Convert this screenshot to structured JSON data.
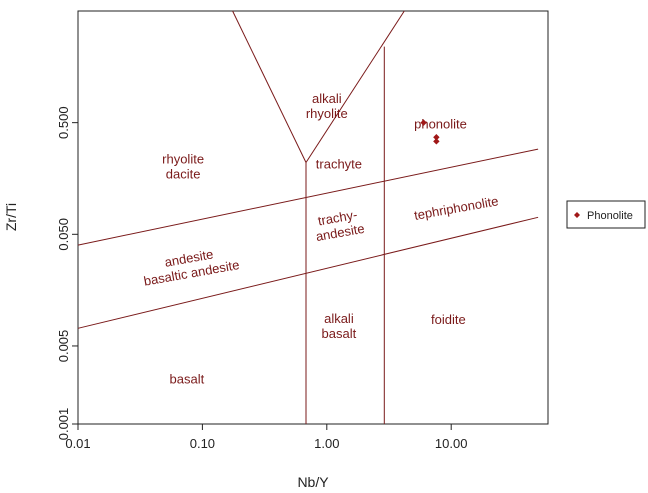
{
  "chart_data": {
    "type": "scatter",
    "title": "",
    "xlabel": "Nb/Y",
    "ylabel": "Zr/Ti",
    "x_scale": "log",
    "y_scale": "log",
    "xlim": [
      0.01,
      60
    ],
    "ylim": [
      0.001,
      5
    ],
    "x_ticks": [
      {
        "value": 0.01,
        "label": "0.01"
      },
      {
        "value": 0.1,
        "label": "0.10"
      },
      {
        "value": 1,
        "label": "1.00"
      },
      {
        "value": 10,
        "label": "10.00"
      }
    ],
    "y_ticks": [
      {
        "value": 0.001,
        "label": "0.001"
      },
      {
        "value": 0.005,
        "label": "0.005"
      },
      {
        "value": 0.05,
        "label": "0.050"
      },
      {
        "value": 0.5,
        "label": "0.500"
      }
    ],
    "grid": false,
    "legend_position": "right",
    "field_color": "#7a1a1a",
    "point_color": "#a01818",
    "series": [
      {
        "name": "Phonolite",
        "marker": "diamond",
        "points": [
          {
            "x": 6.0,
            "y": 0.5
          },
          {
            "x": 7.6,
            "y": 0.37
          },
          {
            "x": 7.6,
            "y": 0.34
          }
        ]
      }
    ],
    "boundaries": [
      {
        "id": "v-left-lower",
        "points": [
          [
            0.68,
            0.001
          ],
          [
            0.68,
            0.22
          ]
        ]
      },
      {
        "id": "v-right",
        "points": [
          [
            2.9,
            0.001
          ],
          [
            2.9,
            2.4
          ]
        ]
      },
      {
        "id": "v-left-arm",
        "points": [
          [
            0.68,
            0.22
          ],
          [
            0.175,
            5
          ]
        ]
      },
      {
        "id": "v-right-arm",
        "points": [
          [
            0.68,
            0.22
          ],
          [
            4.2,
            5
          ]
        ]
      },
      {
        "id": "upper-diagonal",
        "points": [
          [
            0.01,
            0.04
          ],
          [
            50,
            0.29
          ]
        ]
      },
      {
        "id": "lower-diagonal",
        "points": [
          [
            0.01,
            0.0072
          ],
          [
            50,
            0.071
          ]
        ]
      }
    ],
    "fields": [
      {
        "label": "alkali\nrhyolite",
        "x": 1.0,
        "y": 0.7,
        "rotate": 0
      },
      {
        "label": "phonolite",
        "x": 8.2,
        "y": 0.48,
        "rotate": 0
      },
      {
        "label": "rhyolite\ndacite",
        "x": 0.07,
        "y": 0.2,
        "rotate": 0
      },
      {
        "label": "trachyte",
        "x": 1.25,
        "y": 0.21,
        "rotate": 0
      },
      {
        "label": "trachy-\nandesite",
        "x": 1.25,
        "y": 0.06,
        "rotate": -10
      },
      {
        "label": "tephriphonolite",
        "x": 11.0,
        "y": 0.085,
        "rotate": -10
      },
      {
        "label": "andesite\nbasaltic andesite",
        "x": 0.08,
        "y": 0.026,
        "rotate": -10
      },
      {
        "label": "alkali\nbasalt",
        "x": 1.25,
        "y": 0.0075,
        "rotate": 0
      },
      {
        "label": "foidite",
        "x": 9.5,
        "y": 0.0085,
        "rotate": 0
      },
      {
        "label": "basalt",
        "x": 0.075,
        "y": 0.0025,
        "rotate": 0
      }
    ]
  }
}
